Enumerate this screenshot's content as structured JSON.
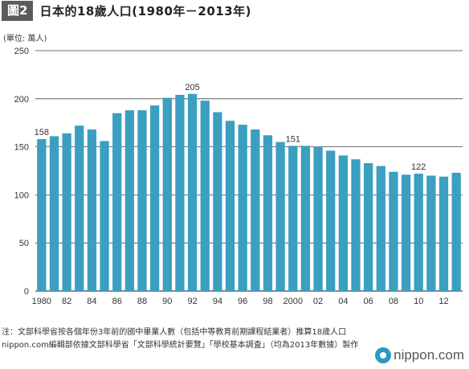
{
  "header": {
    "badge": "圖2",
    "title": "日本的18歲人口(1980年－2013年)"
  },
  "unit_label": "(單位: 萬人)",
  "notes": {
    "line1": "注：文部科學省按各個年份3年前的國中畢業人數（包括中等教育前期課程結業者）推算18歲人口",
    "line2": "nippon.com編輯部依據文部科學省「文部科學統計要覽」「學校基本調査」（均為2013年數據）製作"
  },
  "logo": {
    "icon": "nippon-logo-mark",
    "text": "nippon.com"
  },
  "colors": {
    "bar": "#3a9fc0",
    "grid": "#444444"
  },
  "chart_data": {
    "type": "bar",
    "years": [
      1980,
      1981,
      1982,
      1983,
      1984,
      1985,
      1986,
      1987,
      1988,
      1989,
      1990,
      1991,
      1992,
      1993,
      1994,
      1995,
      1996,
      1997,
      1998,
      1999,
      2000,
      2001,
      2002,
      2003,
      2004,
      2005,
      2006,
      2007,
      2008,
      2009,
      2010,
      2011,
      2012,
      2013
    ],
    "x_tick_labels": [
      "1980",
      "",
      "82",
      "",
      "84",
      "",
      "86",
      "",
      "88",
      "",
      "90",
      "",
      "92",
      "",
      "94",
      "",
      "96",
      "",
      "98",
      "",
      "2000",
      "",
      "02",
      "",
      "04",
      "",
      "06",
      "",
      "08",
      "",
      "10",
      "",
      "12",
      ""
    ],
    "values": [
      158,
      161,
      164,
      172,
      168,
      156,
      185,
      188,
      188,
      193,
      201,
      204,
      205,
      198,
      186,
      177,
      173,
      168,
      162,
      155,
      151,
      151,
      150,
      146,
      141,
      137,
      133,
      130,
      124,
      121,
      122,
      120,
      119,
      123
    ],
    "data_labels": [
      {
        "year": 1980,
        "text": "158"
      },
      {
        "year": 1992,
        "text": "205"
      },
      {
        "year": 2000,
        "text": "151"
      },
      {
        "year": 2010,
        "text": "122"
      }
    ],
    "y_ticks": [
      0,
      50,
      100,
      150,
      200,
      250
    ],
    "ylim": [
      0,
      250
    ],
    "grid": true,
    "legend": "none"
  }
}
